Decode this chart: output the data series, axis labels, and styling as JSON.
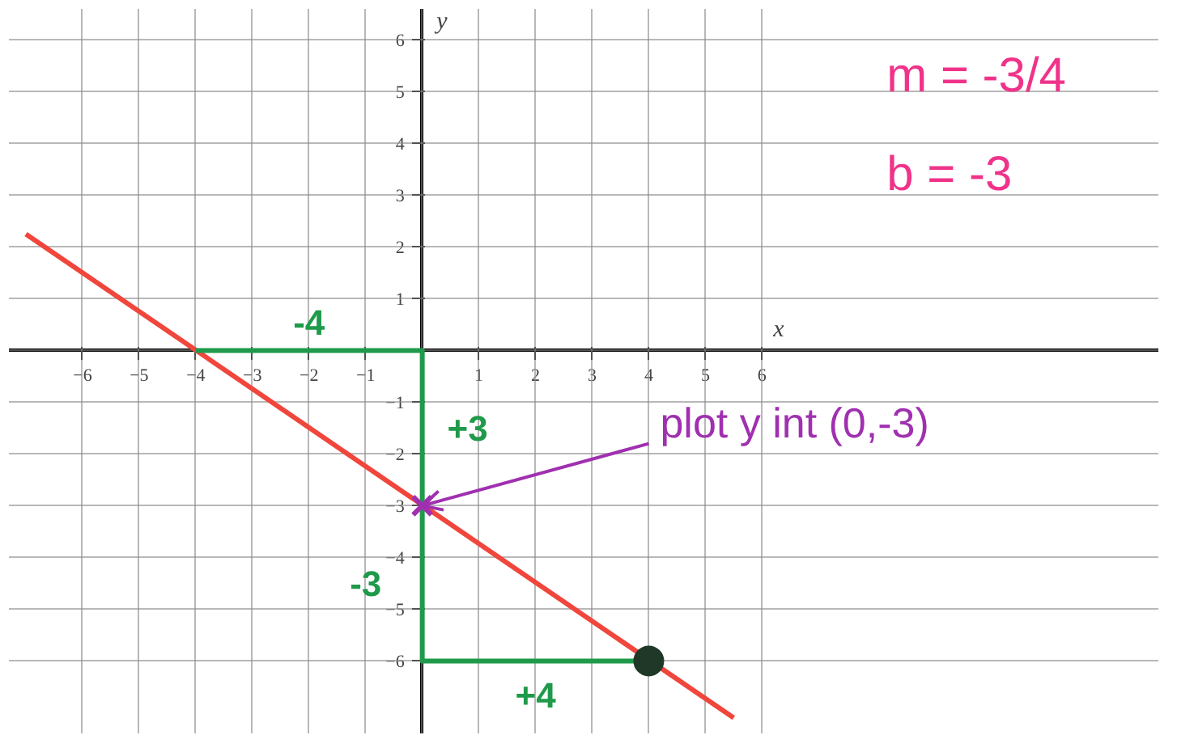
{
  "chart_data": {
    "type": "line",
    "xlabel": "x",
    "ylabel": "y",
    "xlim": [
      -7.3,
      13
    ],
    "ylim": [
      -7.4,
      6.6
    ],
    "xticks": [
      -6,
      -5,
      -4,
      -3,
      -2,
      -1,
      1,
      2,
      3,
      4,
      5,
      6
    ],
    "yticks": [
      -6,
      -5,
      -4,
      -3,
      -2,
      -1,
      1,
      2,
      3,
      4,
      5,
      6
    ],
    "grid": true,
    "series": [
      {
        "color": "#f0463c",
        "x": [
          -7,
          5.5
        ],
        "values": [
          2.25,
          -7.1
        ]
      },
      {
        "color": "#1f9a4a",
        "x": [
          -4,
          0,
          0,
          0,
          4
        ],
        "values": [
          0,
          0,
          -3,
          -6,
          -6
        ]
      },
      {
        "type": "scatter",
        "marker": "cross",
        "color": "#a030b0",
        "x": [
          0
        ],
        "values": [
          -3
        ]
      },
      {
        "type": "scatter",
        "marker": "circle",
        "color": "#203828",
        "x": [
          4
        ],
        "values": [
          -6
        ]
      }
    ],
    "annotations": [
      "-4",
      "+3",
      "-3",
      "+4",
      {
        "text": "plot y int (0,-3)",
        "x": 0,
        "y": -3
      },
      "m = -3/4",
      "b = -3"
    ]
  }
}
